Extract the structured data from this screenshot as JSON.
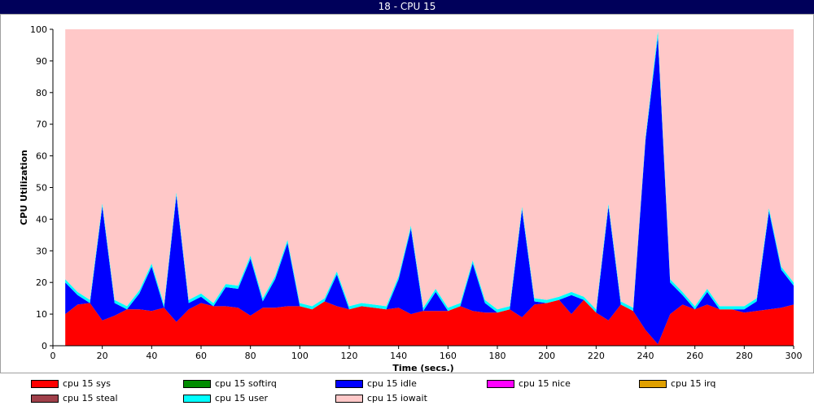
{
  "window": {
    "title": "18 - CPU 15"
  },
  "chart_data": {
    "type": "area",
    "title": "",
    "xlabel": "Time (secs.)",
    "ylabel": "CPU Utilization",
    "xlim": [
      0,
      300
    ],
    "ylim": [
      0,
      100
    ],
    "xticks": [
      0,
      20,
      40,
      60,
      80,
      100,
      120,
      140,
      160,
      180,
      200,
      220,
      240,
      260,
      280,
      300
    ],
    "yticks": [
      0,
      10,
      20,
      30,
      40,
      50,
      60,
      70,
      80,
      90,
      100
    ],
    "x": [
      5,
      10,
      15,
      20,
      25,
      30,
      35,
      40,
      45,
      50,
      55,
      60,
      65,
      70,
      75,
      80,
      85,
      90,
      95,
      100,
      105,
      110,
      115,
      120,
      125,
      130,
      135,
      140,
      145,
      150,
      155,
      160,
      165,
      170,
      175,
      180,
      185,
      190,
      195,
      200,
      205,
      210,
      215,
      220,
      225,
      230,
      235,
      240,
      245,
      250,
      255,
      260,
      265,
      270,
      275,
      280,
      285,
      290,
      295,
      300
    ],
    "stacked": true,
    "series": [
      {
        "name": "cpu 15 sys",
        "color": "#ff0000",
        "values": [
          10,
          13,
          13.5,
          8,
          9.5,
          11.5,
          11.5,
          11,
          12,
          7.5,
          11.5,
          13.5,
          12.5,
          12.5,
          12,
          9.5,
          12,
          12,
          12.5,
          12.5,
          11.5,
          14,
          12.5,
          11.5,
          12.5,
          12,
          11.5,
          12,
          10,
          11,
          11,
          11,
          12.5,
          11,
          10.5,
          10.5,
          11.5,
          9,
          13,
          13.5,
          14.5,
          10,
          14.5,
          10.5,
          8,
          13,
          11,
          5,
          0.5,
          10,
          13,
          11.5,
          13,
          11.5,
          11.5,
          10.5,
          11,
          11.5,
          12,
          13
        ]
      },
      {
        "name": "cpu 15 softirq",
        "color": "#008c00",
        "values": [
          0,
          0,
          0,
          0,
          0,
          0,
          0,
          0,
          0,
          0,
          0,
          0,
          0,
          0,
          0,
          0,
          0,
          0,
          0,
          0,
          0,
          0,
          0,
          0,
          0,
          0,
          0,
          0,
          0,
          0,
          0,
          0,
          0,
          0,
          0,
          0,
          0,
          0,
          0,
          0,
          0,
          0,
          0,
          0,
          0,
          0,
          0,
          0,
          0,
          0,
          0,
          0,
          0,
          0,
          0,
          0,
          0,
          0,
          0,
          0
        ]
      },
      {
        "name": "cpu 15 idle",
        "color": "#0000ff",
        "values": [
          10,
          3,
          0,
          36,
          4,
          0,
          5,
          14,
          0,
          40,
          2,
          2,
          0,
          6,
          6,
          18,
          2,
          9,
          20,
          0,
          0,
          0,
          10,
          0,
          0,
          0,
          0,
          9,
          27,
          0,
          6,
          0,
          0,
          15,
          3,
          0,
          0,
          34,
          1,
          0,
          0,
          6,
          0,
          0,
          36,
          0,
          0,
          60,
          97,
          10,
          3,
          0,
          4,
          0,
          0,
          1,
          3,
          31,
          12,
          6
        ]
      },
      {
        "name": "cpu 15 nice",
        "color": "#ff00ff",
        "values": [
          0,
          0,
          0,
          0,
          0,
          0,
          0,
          0,
          0,
          0,
          0,
          0,
          0,
          0,
          0,
          0,
          0,
          0,
          0,
          0,
          0,
          0,
          0,
          0,
          0,
          0,
          0,
          0,
          0,
          0,
          0,
          0,
          0,
          0,
          0,
          0,
          0,
          0,
          0,
          0,
          0,
          0,
          0,
          0,
          0,
          0,
          0,
          0,
          0,
          0,
          0,
          0,
          0,
          0,
          0,
          0,
          0,
          0,
          0,
          0
        ]
      },
      {
        "name": "cpu 15 irq",
        "color": "#e0a000",
        "values": [
          0,
          0,
          0,
          0,
          0,
          0,
          0,
          0,
          0,
          0,
          0,
          0,
          0,
          0,
          0,
          0,
          0,
          0,
          0,
          0,
          0,
          0,
          0,
          0,
          0,
          0,
          0,
          0,
          0,
          0,
          0,
          0,
          0,
          0,
          0,
          0,
          0,
          0,
          0,
          0,
          0,
          0,
          0,
          0,
          0,
          0,
          0,
          0,
          0,
          0,
          0,
          0,
          0,
          0,
          0,
          0,
          0,
          0,
          0,
          0
        ]
      },
      {
        "name": "cpu 15 steal",
        "color": "#a0404a",
        "values": [
          0,
          0,
          0,
          0,
          0,
          0,
          0,
          0,
          0,
          0,
          0,
          0,
          0,
          0,
          0,
          0,
          0,
          0,
          0,
          0,
          0,
          0,
          0,
          0,
          0,
          0,
          0,
          0,
          0,
          0,
          0,
          0,
          0,
          0,
          0,
          0,
          0,
          0,
          0,
          0,
          0,
          0,
          0,
          0,
          0,
          0,
          0,
          0,
          0,
          0,
          0,
          0,
          0,
          0,
          0,
          0,
          0,
          0,
          0,
          0
        ]
      },
      {
        "name": "cpu 15 user",
        "color": "#00ffff",
        "values": [
          1,
          1,
          1,
          1,
          1,
          1,
          1,
          1,
          1,
          1,
          1,
          1,
          1,
          1,
          1,
          1,
          1,
          1,
          1,
          1,
          1,
          1,
          1,
          1,
          1,
          1,
          1,
          1,
          1,
          1,
          1,
          1,
          1,
          1,
          1,
          1,
          1,
          1,
          1,
          1,
          1,
          1,
          1,
          1,
          1,
          1,
          1,
          1,
          2,
          1,
          1,
          1,
          1,
          1,
          1,
          1,
          1,
          1,
          1,
          1
        ]
      },
      {
        "name": "cpu 15 iowait",
        "color": "#ffc8c8",
        "values": [
          79,
          83,
          85.5,
          55,
          85.5,
          87.5,
          82.5,
          74,
          87,
          51.5,
          85.5,
          83.5,
          86.5,
          80.5,
          81,
          71.5,
          85,
          78,
          66.5,
          86.5,
          87.5,
          85,
          76.5,
          87.5,
          86.5,
          87,
          87.5,
          78,
          62,
          88,
          82,
          88,
          86.5,
          73,
          85.5,
          88.5,
          87.5,
          56,
          85,
          85.5,
          84.5,
          83,
          84.5,
          88.5,
          55,
          86,
          88,
          34,
          0.5,
          79,
          83,
          87.5,
          82,
          87.5,
          87.5,
          87.5,
          85,
          56.5,
          75,
          80
        ]
      }
    ],
    "legend_position": "bottom",
    "grid": false
  }
}
